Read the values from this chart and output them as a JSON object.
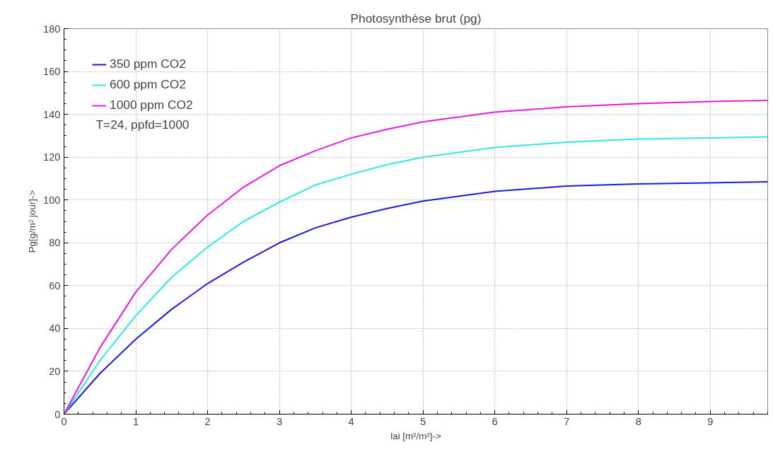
{
  "chart_data": {
    "type": "line",
    "title": "Photosynthèse brut (pg)",
    "xlabel": "lai [m²/m²]->",
    "ylabel": "Pg[g/m² jour]->",
    "x": [
      0,
      0.5,
      1,
      1.5,
      2,
      2.5,
      3,
      3.5,
      4,
      4.5,
      5,
      6,
      7,
      8,
      9,
      9.8
    ],
    "series": [
      {
        "name": "350 ppm CO2",
        "color": "#1a1adc",
        "values": [
          0,
          19,
          35,
          49,
          61,
          71,
          80,
          87,
          92,
          96,
          99.5,
          104,
          106.5,
          107.5,
          108,
          108.5
        ]
      },
      {
        "name": "600 ppm CO2",
        "color": "#33e6e6",
        "values": [
          0,
          25,
          46,
          64,
          78,
          90,
          99,
          107,
          112,
          116.5,
          120,
          124.5,
          127,
          128.5,
          129,
          129.5
        ]
      },
      {
        "name": "1000 ppm CO2",
        "color": "#e619e6",
        "values": [
          0,
          31,
          57,
          77,
          93,
          106,
          116,
          123,
          129,
          133,
          136.5,
          141,
          143.5,
          145,
          146,
          146.5
        ]
      }
    ],
    "annotations": [
      "T=24, ppfd=1000"
    ],
    "xlim": [
      0,
      9.8
    ],
    "ylim": [
      0,
      180
    ],
    "xticks": [
      0,
      1,
      2,
      3,
      4,
      5,
      6,
      7,
      8,
      9
    ],
    "yticks": [
      0,
      20,
      40,
      60,
      80,
      100,
      120,
      140,
      160,
      180
    ],
    "grid": true,
    "legend": "top left",
    "marker": "none",
    "line_style": "solid"
  }
}
